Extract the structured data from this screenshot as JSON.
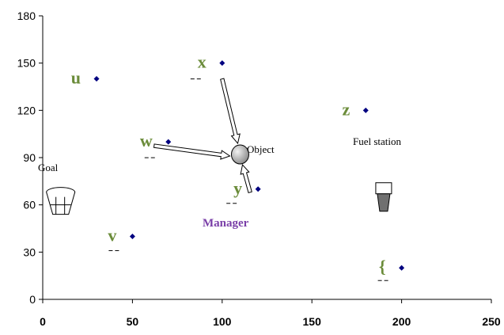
{
  "chart_data": {
    "type": "scatter",
    "xlim": [
      0,
      250
    ],
    "ylim": [
      0,
      180
    ],
    "x_ticks": [
      0,
      50,
      100,
      150,
      200,
      250
    ],
    "y_ticks": [
      0,
      30,
      60,
      90,
      120,
      150,
      180
    ],
    "x_tick_labels": [
      "0",
      "50",
      "100",
      "150",
      "200",
      "250"
    ],
    "y_tick_labels": [
      "0",
      "30",
      "60",
      "90",
      "120",
      "150",
      "180"
    ],
    "grid": false,
    "marker_color": "#000080",
    "points": [
      {
        "label": "u",
        "x": 30,
        "y": 140
      },
      {
        "label": "x",
        "x": 100,
        "y": 150
      },
      {
        "label": "z",
        "x": 180,
        "y": 120
      },
      {
        "label": "w",
        "x": 70,
        "y": 100
      },
      {
        "label": "y",
        "x": 120,
        "y": 70
      },
      {
        "label": "v",
        "x": 50,
        "y": 40
      },
      {
        "label": "{",
        "x": 200,
        "y": 20
      }
    ],
    "annotations": {
      "object": "Object",
      "goal": "Goal",
      "fuel_station": "Fuel station",
      "manager": "Manager"
    }
  }
}
